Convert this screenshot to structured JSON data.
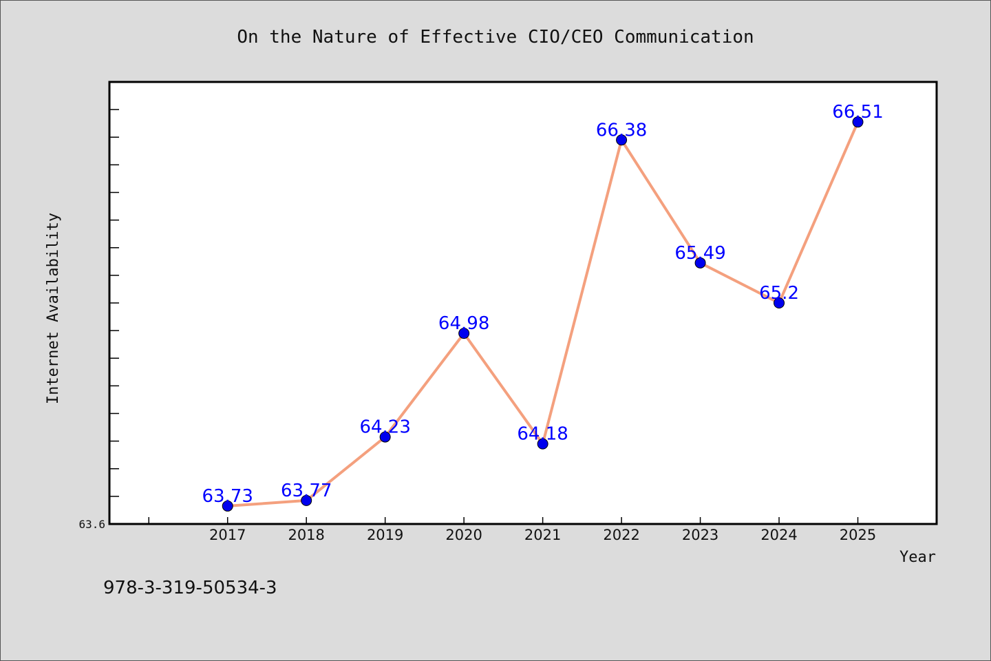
{
  "footer": {
    "isbn": "978-3-319-50534-3"
  },
  "colors": {
    "background": "#dcdcdc",
    "plot_background": "#ffffff",
    "line": "#f4a07e",
    "marker": "#0000ee",
    "data_label": "#0000ff"
  },
  "chart_data": {
    "type": "line",
    "title": "On the Nature of Effective CIO/CEO Communication",
    "xlabel": "Year",
    "ylabel": "Internet Availability",
    "categories": [
      "2017",
      "2018",
      "2019",
      "2020",
      "2021",
      "2022",
      "2023",
      "2024",
      "2025"
    ],
    "series": [
      {
        "values": [
          63.73,
          63.77,
          64.23,
          64.98,
          64.18,
          66.38,
          65.49,
          65.2,
          66.51
        ]
      }
    ],
    "data_labels": [
      "63.73",
      "63.77",
      "64.23",
      "64.98",
      "64.18",
      "66.38",
      "65.49",
      "65.2",
      "66.51"
    ],
    "ylim": [
      63.6,
      66.8
    ],
    "yticks_labeled": [
      "63.6"
    ],
    "ytick_step": 0.2,
    "grid": false,
    "legend": "none"
  }
}
